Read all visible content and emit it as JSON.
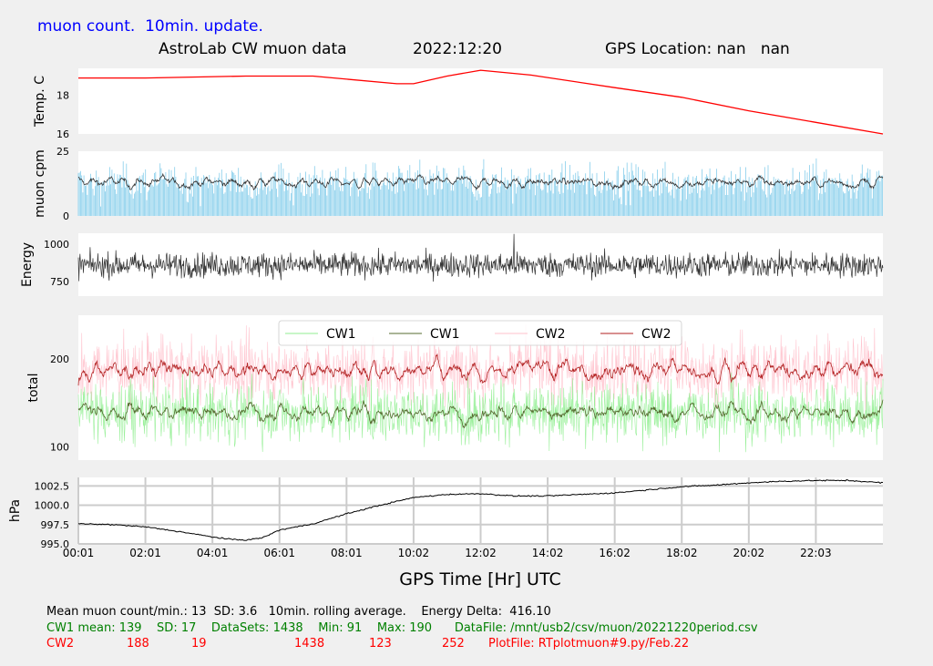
{
  "header": {
    "top_label": "muon count.  10min. update.",
    "title_left": "AstroLab CW muon data",
    "title_date": "2022:12:20",
    "title_gps": "GPS Location: nan   nan"
  },
  "colors": {
    "background": "#f0f0f0",
    "panel": "#ffffff",
    "temp_line": "#ff0000",
    "muon_bars": "#87ceeb",
    "muon_avg": "#333333",
    "energy_line": "#333333",
    "cw1_raw": "#90ee90",
    "cw1_avg": "#556b2f",
    "cw2_raw": "#ffc0cb",
    "cw2_avg": "#b22222",
    "pressure_line": "#000000",
    "footer_black": "#000000",
    "footer_green": "#008000",
    "footer_red": "#ff0000",
    "top_label": "#0000ff"
  },
  "chart_data": [
    {
      "type": "line",
      "ylabel": "Temp. C",
      "yticks": [
        16,
        18
      ],
      "ylim": [
        16,
        19.4
      ],
      "x_hours": [
        0.0,
        2.0,
        5.0,
        7.0,
        9.5,
        10.0,
        11.0,
        12.0,
        13.5,
        16.0,
        18.0,
        20.0,
        22.0,
        24.0
      ],
      "values": [
        18.9,
        18.9,
        19.0,
        19.0,
        18.6,
        18.6,
        19.0,
        19.3,
        19.05,
        18.4,
        17.9,
        17.2,
        16.6,
        16.0
      ],
      "grid": false
    },
    {
      "type": "bar",
      "ylabel": "muon cpm",
      "yticks": [
        0,
        25
      ],
      "ylim": [
        0,
        25
      ],
      "mean": 13,
      "sd": 3.6,
      "rolling_avg_label": "10min. rolling average.",
      "grid": false
    },
    {
      "type": "line",
      "ylabel": "Energy",
      "yticks": [
        750,
        1000
      ],
      "ylim": [
        650,
        1075
      ],
      "mean": 860,
      "spike": {
        "x_hour": 13.0,
        "value": 1070
      },
      "grid": false
    },
    {
      "type": "line",
      "ylabel": "total",
      "yticks": [
        100,
        200
      ],
      "ylim": [
        85,
        250
      ],
      "legend": [
        "CW1",
        "CW1",
        "CW2",
        "CW2"
      ],
      "legend_position": "top-center",
      "series": [
        {
          "name": "CW1",
          "style": "raw",
          "mean": 139,
          "min": 91,
          "max": 190
        },
        {
          "name": "CW1",
          "style": "avg",
          "mean": 139
        },
        {
          "name": "CW2",
          "style": "raw",
          "mean": 188,
          "min": 123,
          "max": 252
        },
        {
          "name": "CW2",
          "style": "avg",
          "mean": 188
        }
      ],
      "grid": false
    },
    {
      "type": "line",
      "ylabel": "hPa",
      "xlabel": "GPS Time  [Hr] UTC",
      "xticks": [
        "00:01",
        "02:01",
        "04:01",
        "06:01",
        "08:01",
        "10:02",
        "12:02",
        "14:02",
        "16:02",
        "18:02",
        "20:02",
        "22:03"
      ],
      "yticks": [
        "995.0",
        "997.5",
        "1000.0",
        "1002.5"
      ],
      "ylim": [
        995.0,
        1003.6
      ],
      "x_hours": [
        0.0,
        1.0,
        2.0,
        3.0,
        4.0,
        4.5,
        5.0,
        5.5,
        6.0,
        7.0,
        8.0,
        9.0,
        10.0,
        11.0,
        12.0,
        13.0,
        14.0,
        15.0,
        16.0,
        17.0,
        18.0,
        19.0,
        20.0,
        21.0,
        22.0,
        23.0,
        24.0
      ],
      "values": [
        997.6,
        997.5,
        997.2,
        996.6,
        995.9,
        995.6,
        995.5,
        995.8,
        996.8,
        997.6,
        998.9,
        1000.0,
        1001.0,
        1001.4,
        1001.5,
        1001.2,
        1001.2,
        1001.4,
        1001.6,
        1002.0,
        1002.4,
        1002.6,
        1002.9,
        1003.1,
        1003.2,
        1003.2,
        1002.9
      ],
      "grid": true
    }
  ],
  "footer": {
    "line1": "Mean muon count/min.: 13  SD: 3.6   10min. rolling average.    Energy Delta:  416.10",
    "cw1_label": "CW1 mean: 139    SD: 17    DataSets: 1438    Min: 91    Max: 190      DataFile: /mnt/usb2/csv/muon/20221220period.csv",
    "cw2_cols": [
      "CW2",
      "188",
      "19",
      "1438",
      "123",
      "252",
      "PlotFile: RTplotmuon#9.py/Feb.22"
    ]
  }
}
